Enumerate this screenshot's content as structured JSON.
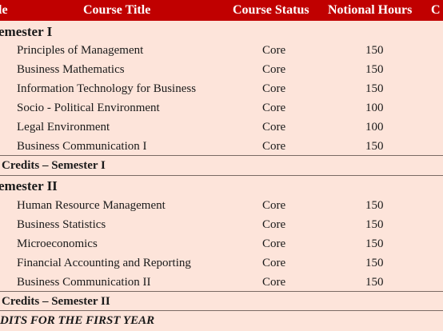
{
  "header": {
    "code_label": "le",
    "title_label": "Course Title",
    "status_label": "Course Status",
    "hours_label": "Notional Hours",
    "credits_label": "C"
  },
  "semester1": {
    "label": "emester I",
    "courses": [
      {
        "title": "Principles of Management",
        "status": "Core",
        "hours": "150"
      },
      {
        "title": "Business Mathematics",
        "status": "Core",
        "hours": "150"
      },
      {
        "title": "Information Technology for Business",
        "status": "Core",
        "hours": "150"
      },
      {
        "title": "Socio - Political Environment",
        "status": "Core",
        "hours": "100"
      },
      {
        "title": "Legal Environment",
        "status": "Core",
        "hours": "100"
      },
      {
        "title": "Business Communication I",
        "status": "Core",
        "hours": "150"
      }
    ],
    "total_label": "Credits – Semester I"
  },
  "semester2": {
    "label": "emester II",
    "courses": [
      {
        "title": "Human Resource Management",
        "status": "Core",
        "hours": "150"
      },
      {
        "title": "Business Statistics",
        "status": "Core",
        "hours": "150"
      },
      {
        "title": "Microeconomics",
        "status": "Core",
        "hours": "150"
      },
      {
        "title": "Financial Accounting and Reporting",
        "status": "Core",
        "hours": "150"
      },
      {
        "title": "Business Communication II",
        "status": "Core",
        "hours": "150"
      }
    ],
    "total_label": "Credits – Semester II"
  },
  "grand_total_label": "DITS FOR THE FIRST YEAR",
  "colors": {
    "header_bg": "#c00000",
    "header_text": "#ffffff",
    "table_bg": "#fde4da"
  }
}
